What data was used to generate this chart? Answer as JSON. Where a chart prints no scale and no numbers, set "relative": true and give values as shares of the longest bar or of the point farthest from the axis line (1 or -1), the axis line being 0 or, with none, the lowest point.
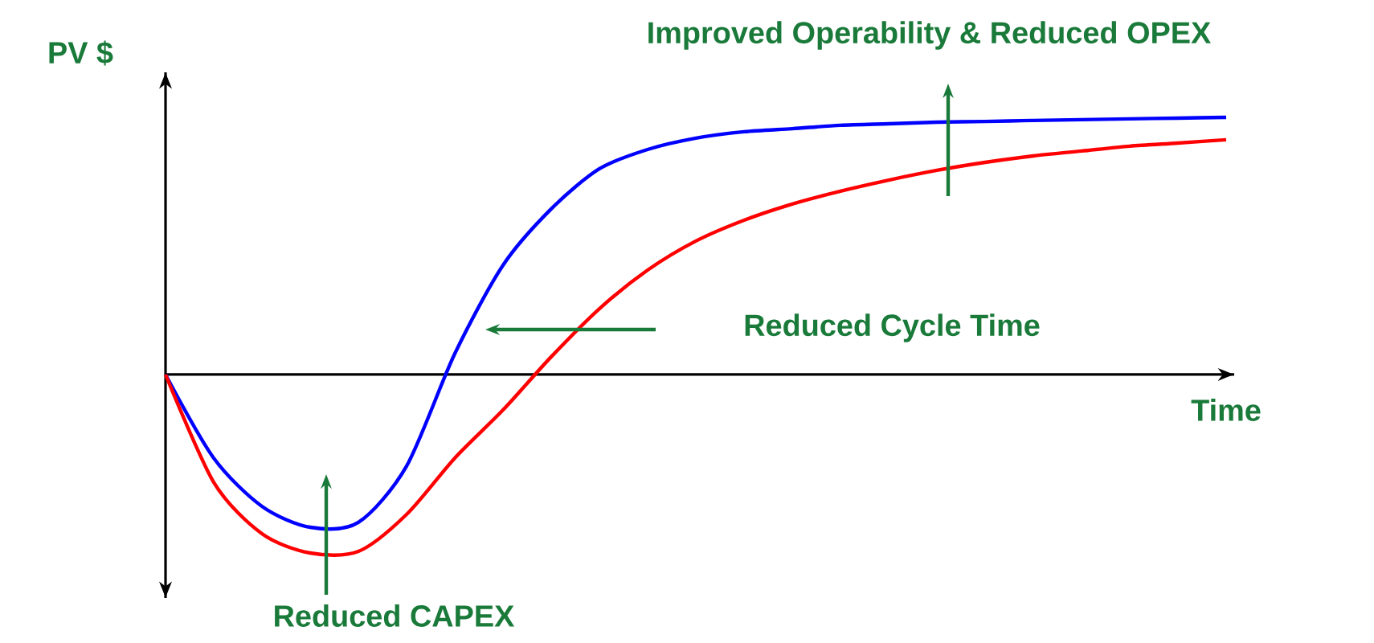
{
  "chart_data": {
    "type": "line",
    "relative": true,
    "xlabel": "Time",
    "ylabel": "PV $",
    "categories": [
      null,
      null,
      null,
      null,
      null,
      null,
      null,
      null,
      null,
      null,
      null,
      null,
      null,
      null,
      null,
      null,
      null,
      null,
      null,
      null,
      null,
      null,
      null
    ],
    "series": [
      {
        "color": "#0000ff",
        "values": [
          0,
          -0.325,
          -0.5125,
          -0.594,
          -0.575,
          -0.356,
          0.081,
          0.425,
          0.644,
          0.8,
          0.875,
          0.919,
          0.944,
          0.956,
          0.969,
          0.975,
          0.981,
          0.984,
          0.988,
          0.991,
          0.994,
          0.997,
          1
        ]
      },
      {
        "color": "#ff0000",
        "values": [
          0,
          -0.419,
          -0.619,
          -0.694,
          -0.688,
          -0.544,
          -0.325,
          -0.138,
          0.069,
          0.256,
          0.406,
          0.519,
          0.6,
          0.663,
          0.713,
          0.756,
          0.794,
          0.825,
          0.85,
          0.869,
          0.888,
          0.9,
          0.913
        ]
      }
    ],
    "annotations": [
      "Improved Operability & Reduced OPEX",
      "Reduced Cycle Time",
      "Reduced CAPEX"
    ]
  }
}
